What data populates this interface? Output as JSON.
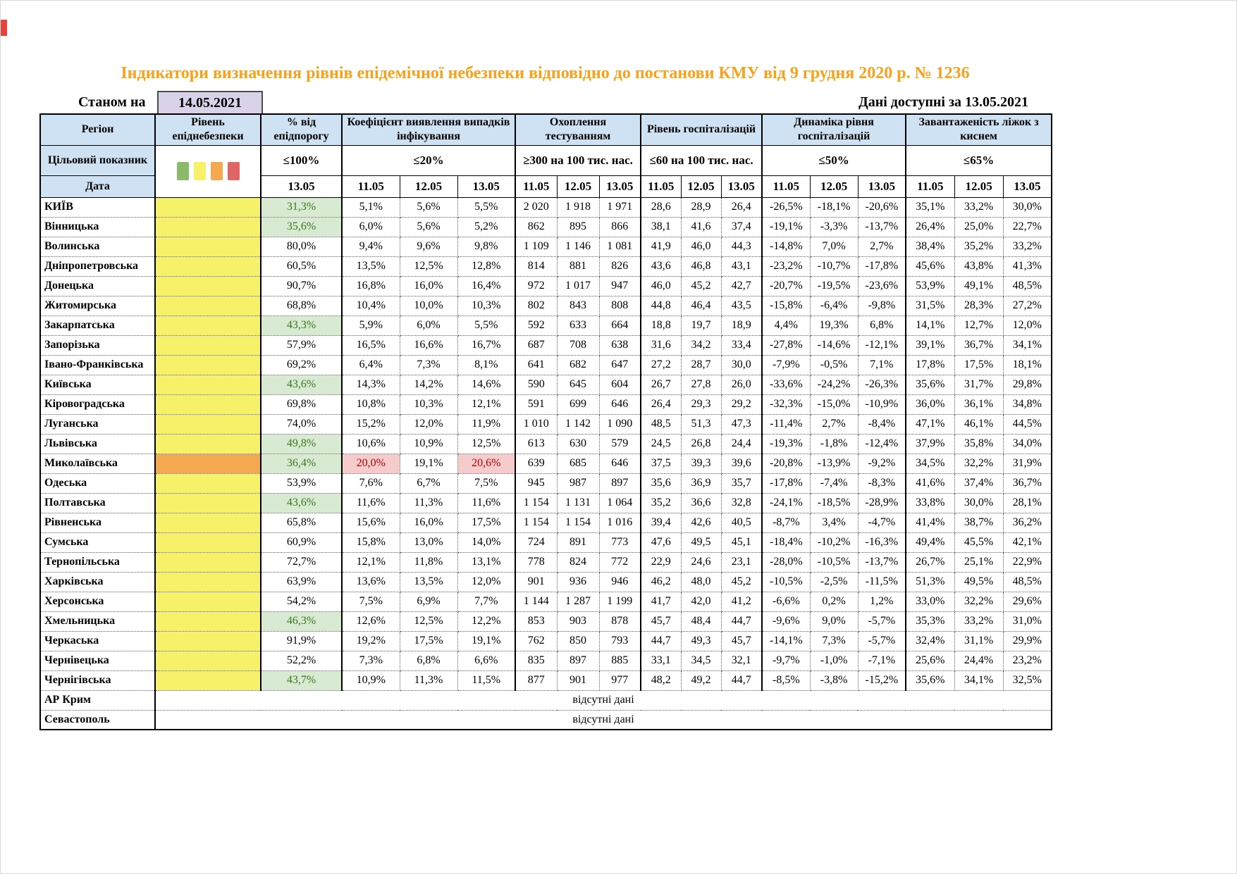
{
  "page": {
    "title": "Індикатори визначення рівнів епідемічної небезпеки відповідно до постанови КМУ від 9 грудня 2020 р. № 1236",
    "as_of_label": "Станом на",
    "as_of_date": "14.05.2021",
    "data_available": "Дані доступні за 13.05.2021"
  },
  "colors": {
    "title_orange": "#F9A11B",
    "header_blue": "#CFE2F3",
    "date_box_purple": "#D9D2E9",
    "level_yellow": "#F7F169",
    "level_orange": "#F4A950",
    "good_bg": "#D9EAD3",
    "good_text": "#38761D",
    "alert_bg": "#F5CBCB",
    "alert_text": "#B00000"
  },
  "table": {
    "col_headers": [
      "Регіон",
      "Рівень епіднебезпеки",
      "% від епідпорогу",
      "Коефіцієнт виявлення випадків інфікування",
      "Охоплення тестуванням",
      "Рівень госпіталізацій",
      "Динаміка рівня госпіталізацій",
      "Завантаженість ліжок з киснем"
    ],
    "target_row_label": "Цільовий показник",
    "targets": [
      "≤100%",
      "≤20%",
      "≥300 на 100 тис. нас.",
      "≤60 на 100 тис. нас.",
      "≤50%",
      "≤65%"
    ],
    "date_row_label": "Дата",
    "pct_date": "13.05",
    "dates": [
      "11.05",
      "12.05",
      "13.05"
    ],
    "legend_colors": [
      "#8CBA6B",
      "#F7F169",
      "#F4A950",
      "#E06666"
    ],
    "legend_names": [
      "green-level",
      "yellow-level",
      "orange-level",
      "red-level"
    ],
    "no_data_text": "відсутні дані",
    "rows": [
      {
        "region": "КИЇВ",
        "level": "yellow",
        "pct": "31,3%",
        "pct_good": true,
        "values": [
          "5,1%",
          "5,6%",
          "5,5%",
          "2 020",
          "1 918",
          "1 971",
          "28,6",
          "28,9",
          "26,4",
          "-26,5%",
          "-18,1%",
          "-20,6%",
          "35,1%",
          "33,2%",
          "30,0%"
        ],
        "alerts": []
      },
      {
        "region": "Вінницька",
        "level": "yellow",
        "pct": "35,6%",
        "pct_good": true,
        "values": [
          "6,0%",
          "5,6%",
          "5,2%",
          "862",
          "895",
          "866",
          "38,1",
          "41,6",
          "37,4",
          "-19,1%",
          "-3,3%",
          "-13,7%",
          "26,4%",
          "25,0%",
          "22,7%"
        ],
        "alerts": []
      },
      {
        "region": "Волинська",
        "level": "yellow",
        "pct": "80,0%",
        "pct_good": false,
        "values": [
          "9,4%",
          "9,6%",
          "9,8%",
          "1 109",
          "1 146",
          "1 081",
          "41,9",
          "46,0",
          "44,3",
          "-14,8%",
          "7,0%",
          "2,7%",
          "38,4%",
          "35,2%",
          "33,2%"
        ],
        "alerts": []
      },
      {
        "region": "Дніпропетровська",
        "level": "yellow",
        "pct": "60,5%",
        "pct_good": false,
        "values": [
          "13,5%",
          "12,5%",
          "12,8%",
          "814",
          "881",
          "826",
          "43,6",
          "46,8",
          "43,1",
          "-23,2%",
          "-10,7%",
          "-17,8%",
          "45,6%",
          "43,8%",
          "41,3%"
        ],
        "alerts": []
      },
      {
        "region": "Донецька",
        "level": "yellow",
        "pct": "90,7%",
        "pct_good": false,
        "values": [
          "16,8%",
          "16,0%",
          "16,4%",
          "972",
          "1 017",
          "947",
          "46,0",
          "45,2",
          "42,7",
          "-20,7%",
          "-19,5%",
          "-23,6%",
          "53,9%",
          "49,1%",
          "48,5%"
        ],
        "alerts": []
      },
      {
        "region": "Житомирська",
        "level": "yellow",
        "pct": "68,8%",
        "pct_good": false,
        "values": [
          "10,4%",
          "10,0%",
          "10,3%",
          "802",
          "843",
          "808",
          "44,8",
          "46,4",
          "43,5",
          "-15,8%",
          "-6,4%",
          "-9,8%",
          "31,5%",
          "28,3%",
          "27,2%"
        ],
        "alerts": []
      },
      {
        "region": "Закарпатська",
        "level": "yellow",
        "pct": "43,3%",
        "pct_good": true,
        "values": [
          "5,9%",
          "6,0%",
          "5,5%",
          "592",
          "633",
          "664",
          "18,8",
          "19,7",
          "18,9",
          "4,4%",
          "19,3%",
          "6,8%",
          "14,1%",
          "12,7%",
          "12,0%"
        ],
        "alerts": []
      },
      {
        "region": "Запорізька",
        "level": "yellow",
        "pct": "57,9%",
        "pct_good": false,
        "values": [
          "16,5%",
          "16,6%",
          "16,7%",
          "687",
          "708",
          "638",
          "31,6",
          "34,2",
          "33,4",
          "-27,8%",
          "-14,6%",
          "-12,1%",
          "39,1%",
          "36,7%",
          "34,1%"
        ],
        "alerts": []
      },
      {
        "region": "Івано-Франківська",
        "level": "yellow",
        "pct": "69,2%",
        "pct_good": false,
        "values": [
          "6,4%",
          "7,3%",
          "8,1%",
          "641",
          "682",
          "647",
          "27,2",
          "28,7",
          "30,0",
          "-7,9%",
          "-0,5%",
          "7,1%",
          "17,8%",
          "17,5%",
          "18,1%"
        ],
        "alerts": []
      },
      {
        "region": "Київська",
        "level": "yellow",
        "pct": "43,6%",
        "pct_good": true,
        "values": [
          "14,3%",
          "14,2%",
          "14,6%",
          "590",
          "645",
          "604",
          "26,7",
          "27,8",
          "26,0",
          "-33,6%",
          "-24,2%",
          "-26,3%",
          "35,6%",
          "31,7%",
          "29,8%"
        ],
        "alerts": []
      },
      {
        "region": "Кіровоградська",
        "level": "yellow",
        "pct": "69,8%",
        "pct_good": false,
        "values": [
          "10,8%",
          "10,3%",
          "12,1%",
          "591",
          "699",
          "646",
          "26,4",
          "29,3",
          "29,2",
          "-32,3%",
          "-15,0%",
          "-10,9%",
          "36,0%",
          "36,1%",
          "34,8%"
        ],
        "alerts": []
      },
      {
        "region": "Луганська",
        "level": "yellow",
        "pct": "74,0%",
        "pct_good": false,
        "values": [
          "15,2%",
          "12,0%",
          "11,9%",
          "1 010",
          "1 142",
          "1 090",
          "48,5",
          "51,3",
          "47,3",
          "-11,4%",
          "2,7%",
          "-8,4%",
          "47,1%",
          "46,1%",
          "44,5%"
        ],
        "alerts": []
      },
      {
        "region": "Львівська",
        "level": "yellow",
        "pct": "49,8%",
        "pct_good": true,
        "values": [
          "10,6%",
          "10,9%",
          "12,5%",
          "613",
          "630",
          "579",
          "24,5",
          "26,8",
          "24,4",
          "-19,3%",
          "-1,8%",
          "-12,4%",
          "37,9%",
          "35,8%",
          "34,0%"
        ],
        "alerts": []
      },
      {
        "region": "Миколаївська",
        "level": "orange",
        "pct": "36,4%",
        "pct_good": true,
        "values": [
          "20,0%",
          "19,1%",
          "20,6%",
          "639",
          "685",
          "646",
          "37,5",
          "39,3",
          "39,6",
          "-20,8%",
          "-13,9%",
          "-9,2%",
          "34,5%",
          "32,2%",
          "31,9%"
        ],
        "alerts": [
          0,
          2
        ]
      },
      {
        "region": "Одеська",
        "level": "yellow",
        "pct": "53,9%",
        "pct_good": false,
        "values": [
          "7,6%",
          "6,7%",
          "7,5%",
          "945",
          "987",
          "897",
          "35,6",
          "36,9",
          "35,7",
          "-17,8%",
          "-7,4%",
          "-8,3%",
          "41,6%",
          "37,4%",
          "36,7%"
        ],
        "alerts": []
      },
      {
        "region": "Полтавська",
        "level": "yellow",
        "pct": "43,6%",
        "pct_good": true,
        "values": [
          "11,6%",
          "11,3%",
          "11,6%",
          "1 154",
          "1 131",
          "1 064",
          "35,2",
          "36,6",
          "32,8",
          "-24,1%",
          "-18,5%",
          "-28,9%",
          "33,8%",
          "30,0%",
          "28,1%"
        ],
        "alerts": []
      },
      {
        "region": "Рівненська",
        "level": "yellow",
        "pct": "65,8%",
        "pct_good": false,
        "values": [
          "15,6%",
          "16,0%",
          "17,5%",
          "1 154",
          "1 154",
          "1 016",
          "39,4",
          "42,6",
          "40,5",
          "-8,7%",
          "3,4%",
          "-4,7%",
          "41,4%",
          "38,7%",
          "36,2%"
        ],
        "alerts": []
      },
      {
        "region": "Сумська",
        "level": "yellow",
        "pct": "60,9%",
        "pct_good": false,
        "values": [
          "15,8%",
          "13,0%",
          "14,0%",
          "724",
          "891",
          "773",
          "47,6",
          "49,5",
          "45,1",
          "-18,4%",
          "-10,2%",
          "-16,3%",
          "49,4%",
          "45,5%",
          "42,1%"
        ],
        "alerts": []
      },
      {
        "region": "Тернопільська",
        "level": "yellow",
        "pct": "72,7%",
        "pct_good": false,
        "values": [
          "12,1%",
          "11,8%",
          "13,1%",
          "778",
          "824",
          "772",
          "22,9",
          "24,6",
          "23,1",
          "-28,0%",
          "-10,5%",
          "-13,7%",
          "26,7%",
          "25,1%",
          "22,9%"
        ],
        "alerts": []
      },
      {
        "region": "Харківська",
        "level": "yellow",
        "pct": "63,9%",
        "pct_good": false,
        "values": [
          "13,6%",
          "13,5%",
          "12,0%",
          "901",
          "936",
          "946",
          "46,2",
          "48,0",
          "45,2",
          "-10,5%",
          "-2,5%",
          "-11,5%",
          "51,3%",
          "49,5%",
          "48,5%"
        ],
        "alerts": []
      },
      {
        "region": "Херсонська",
        "level": "yellow",
        "pct": "54,2%",
        "pct_good": false,
        "values": [
          "7,5%",
          "6,9%",
          "7,7%",
          "1 144",
          "1 287",
          "1 199",
          "41,7",
          "42,0",
          "41,2",
          "-6,6%",
          "0,2%",
          "1,2%",
          "33,0%",
          "32,2%",
          "29,6%"
        ],
        "alerts": []
      },
      {
        "region": "Хмельницька",
        "level": "yellow",
        "pct": "46,3%",
        "pct_good": true,
        "values": [
          "12,6%",
          "12,5%",
          "12,2%",
          "853",
          "903",
          "878",
          "45,7",
          "48,4",
          "44,7",
          "-9,6%",
          "9,0%",
          "-5,7%",
          "35,3%",
          "33,2%",
          "31,0%"
        ],
        "alerts": []
      },
      {
        "region": "Черкаська",
        "level": "yellow",
        "pct": "91,9%",
        "pct_good": false,
        "values": [
          "19,2%",
          "17,5%",
          "19,1%",
          "762",
          "850",
          "793",
          "44,7",
          "49,3",
          "45,7",
          "-14,1%",
          "7,3%",
          "-5,7%",
          "32,4%",
          "31,1%",
          "29,9%"
        ],
        "alerts": []
      },
      {
        "region": "Чернівецька",
        "level": "yellow",
        "pct": "52,2%",
        "pct_good": false,
        "values": [
          "7,3%",
          "6,8%",
          "6,6%",
          "835",
          "897",
          "885",
          "33,1",
          "34,5",
          "32,1",
          "-9,7%",
          "-1,0%",
          "-7,1%",
          "25,6%",
          "24,4%",
          "23,2%"
        ],
        "alerts": []
      },
      {
        "region": "Чернігівська",
        "level": "yellow",
        "pct": "43,7%",
        "pct_good": true,
        "values": [
          "10,9%",
          "11,3%",
          "11,5%",
          "877",
          "901",
          "977",
          "48,2",
          "49,2",
          "44,7",
          "-8,5%",
          "-3,8%",
          "-15,2%",
          "35,6%",
          "34,1%",
          "32,5%"
        ],
        "alerts": []
      }
    ],
    "no_data_rows": [
      "АР Крим",
      "Севастополь"
    ]
  }
}
